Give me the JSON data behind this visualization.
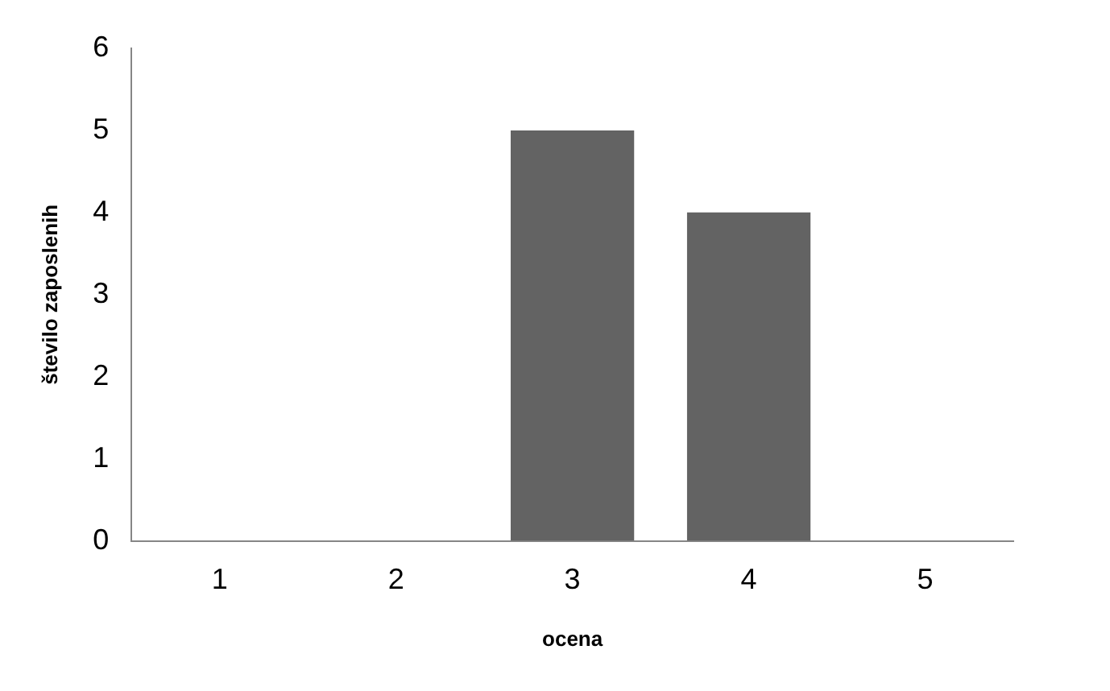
{
  "chart_data": {
    "type": "bar",
    "xlabel": "ocena",
    "ylabel": "število zaposlenih",
    "categories": [
      "1",
      "2",
      "3",
      "4",
      "5"
    ],
    "values": [
      0,
      0,
      5,
      4,
      0
    ],
    "color": "#636363",
    "ylim": [
      0,
      6
    ],
    "yticks": [
      0,
      1,
      2,
      3,
      4,
      5,
      6
    ],
    "grid": false,
    "legend": false
  }
}
